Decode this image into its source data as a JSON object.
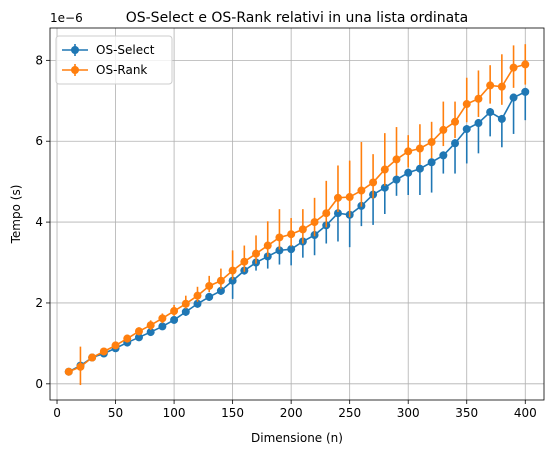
{
  "chart_data": {
    "type": "line",
    "title": "OS-Select e OS-Rank relativi in una lista ordinata",
    "xlabel": "Dimensione (n)",
    "ylabel": "Tempo (s)",
    "y_offset_label": "1e−6",
    "xlim": [
      -6,
      416
    ],
    "ylim": [
      -0.4,
      8.8
    ],
    "xticks": [
      0,
      50,
      100,
      150,
      200,
      250,
      300,
      350,
      400
    ],
    "yticks": [
      0,
      2,
      4,
      6,
      8
    ],
    "grid": true,
    "legend_position": "top-left",
    "x": [
      10,
      20,
      30,
      40,
      50,
      60,
      70,
      80,
      90,
      100,
      110,
      120,
      130,
      140,
      150,
      160,
      170,
      180,
      190,
      200,
      210,
      220,
      230,
      240,
      250,
      260,
      270,
      280,
      290,
      300,
      310,
      320,
      330,
      340,
      350,
      360,
      370,
      380,
      390,
      400
    ],
    "series": [
      {
        "name": "OS-Select",
        "color": "#1f77b4",
        "values": [
          0.3,
          0.45,
          0.65,
          0.75,
          0.88,
          1.02,
          1.15,
          1.28,
          1.42,
          1.58,
          1.78,
          1.98,
          2.15,
          2.3,
          2.55,
          2.8,
          3.0,
          3.15,
          3.3,
          3.33,
          3.52,
          3.68,
          3.92,
          4.22,
          4.18,
          4.4,
          4.68,
          4.85,
          5.05,
          5.22,
          5.32,
          5.48,
          5.65,
          5.95,
          6.3,
          6.45,
          6.72,
          6.55,
          7.08,
          7.22
        ],
        "err_low": [
          0.02,
          0.02,
          0.05,
          0.03,
          0.05,
          0.05,
          0.05,
          0.06,
          0.06,
          0.08,
          0.1,
          0.1,
          0.1,
          0.1,
          0.45,
          0.1,
          0.2,
          0.3,
          0.35,
          0.4,
          0.4,
          0.5,
          0.45,
          0.7,
          0.8,
          0.5,
          0.75,
          0.65,
          0.4,
          0.55,
          0.65,
          0.75,
          0.45,
          0.75,
          0.85,
          0.75,
          0.6,
          0.7,
          0.9,
          0.7
        ],
        "err_high": [
          0.02,
          0.02,
          0.05,
          0.03,
          0.05,
          0.05,
          0.05,
          0.06,
          0.06,
          0.08,
          0.1,
          0.1,
          0.1,
          0.1,
          0.15,
          0.1,
          0.1,
          0.1,
          0.1,
          0.1,
          0.1,
          0.1,
          0.1,
          0.1,
          0.1,
          0.1,
          0.1,
          0.1,
          0.1,
          0.1,
          0.1,
          0.1,
          0.1,
          0.1,
          0.1,
          0.1,
          0.1,
          0.1,
          0.1,
          0.1
        ]
      },
      {
        "name": "OS-Rank",
        "color": "#ff7f0e",
        "values": [
          0.3,
          0.42,
          0.65,
          0.8,
          0.95,
          1.12,
          1.3,
          1.45,
          1.62,
          1.8,
          1.98,
          2.18,
          2.42,
          2.55,
          2.8,
          3.02,
          3.22,
          3.42,
          3.62,
          3.7,
          3.82,
          4.0,
          4.22,
          4.6,
          4.62,
          4.78,
          4.98,
          5.3,
          5.55,
          5.75,
          5.82,
          5.98,
          6.28,
          6.48,
          6.92,
          7.05,
          7.38,
          7.35,
          7.82,
          7.9
        ],
        "err_low": [
          0.03,
          0.45,
          0.06,
          0.05,
          0.08,
          0.1,
          0.1,
          0.12,
          0.12,
          0.12,
          0.12,
          0.15,
          0.15,
          0.2,
          0.22,
          0.25,
          0.25,
          0.28,
          0.3,
          0.3,
          0.35,
          0.35,
          0.35,
          0.35,
          0.5,
          0.4,
          0.4,
          0.4,
          0.4,
          0.4,
          0.4,
          0.4,
          0.4,
          0.4,
          0.45,
          0.45,
          0.45,
          0.45,
          0.5,
          0.5
        ],
        "err_high": [
          0.03,
          0.5,
          0.06,
          0.05,
          0.08,
          0.1,
          0.1,
          0.12,
          0.12,
          0.15,
          0.2,
          0.22,
          0.25,
          0.3,
          0.5,
          0.4,
          0.45,
          0.6,
          0.7,
          0.4,
          0.5,
          0.6,
          0.8,
          0.8,
          0.9,
          1.2,
          0.7,
          0.9,
          0.8,
          0.4,
          0.6,
          0.5,
          0.7,
          0.5,
          0.65,
          0.7,
          0.5,
          0.8,
          0.55,
          0.5
        ]
      }
    ]
  }
}
